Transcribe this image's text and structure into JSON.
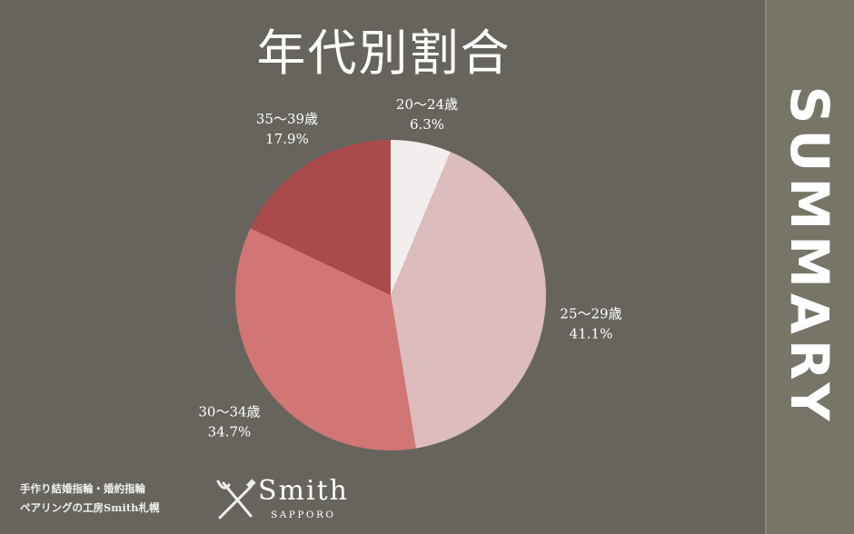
{
  "title": "年代別割合",
  "side_label": "SUMMARY",
  "footer": {
    "line1": "手作り結婚指輪・婚約指輪",
    "line2": "ペアリングの工房Smith札幌",
    "logo_name": "Smith",
    "logo_sub": "SAPPORO"
  },
  "colors": {
    "background": "#67645e",
    "side_panel": "#777468"
  },
  "chart_data": {
    "type": "pie",
    "title": "年代別割合",
    "start": "top",
    "direction": "clockwise",
    "slices": [
      {
        "label": "20〜24歳",
        "value": 6.3,
        "display": "6.3%",
        "color": "#f3eeee"
      },
      {
        "label": "25〜29歳",
        "value": 41.1,
        "display": "41.1%",
        "color": "#dcbcbd"
      },
      {
        "label": "30〜34歳",
        "value": 34.7,
        "display": "34.7%",
        "color": "#d17674"
      },
      {
        "label": "35〜39歳",
        "value": 17.9,
        "display": "17.9%",
        "color": "#ab4a4a"
      }
    ]
  }
}
